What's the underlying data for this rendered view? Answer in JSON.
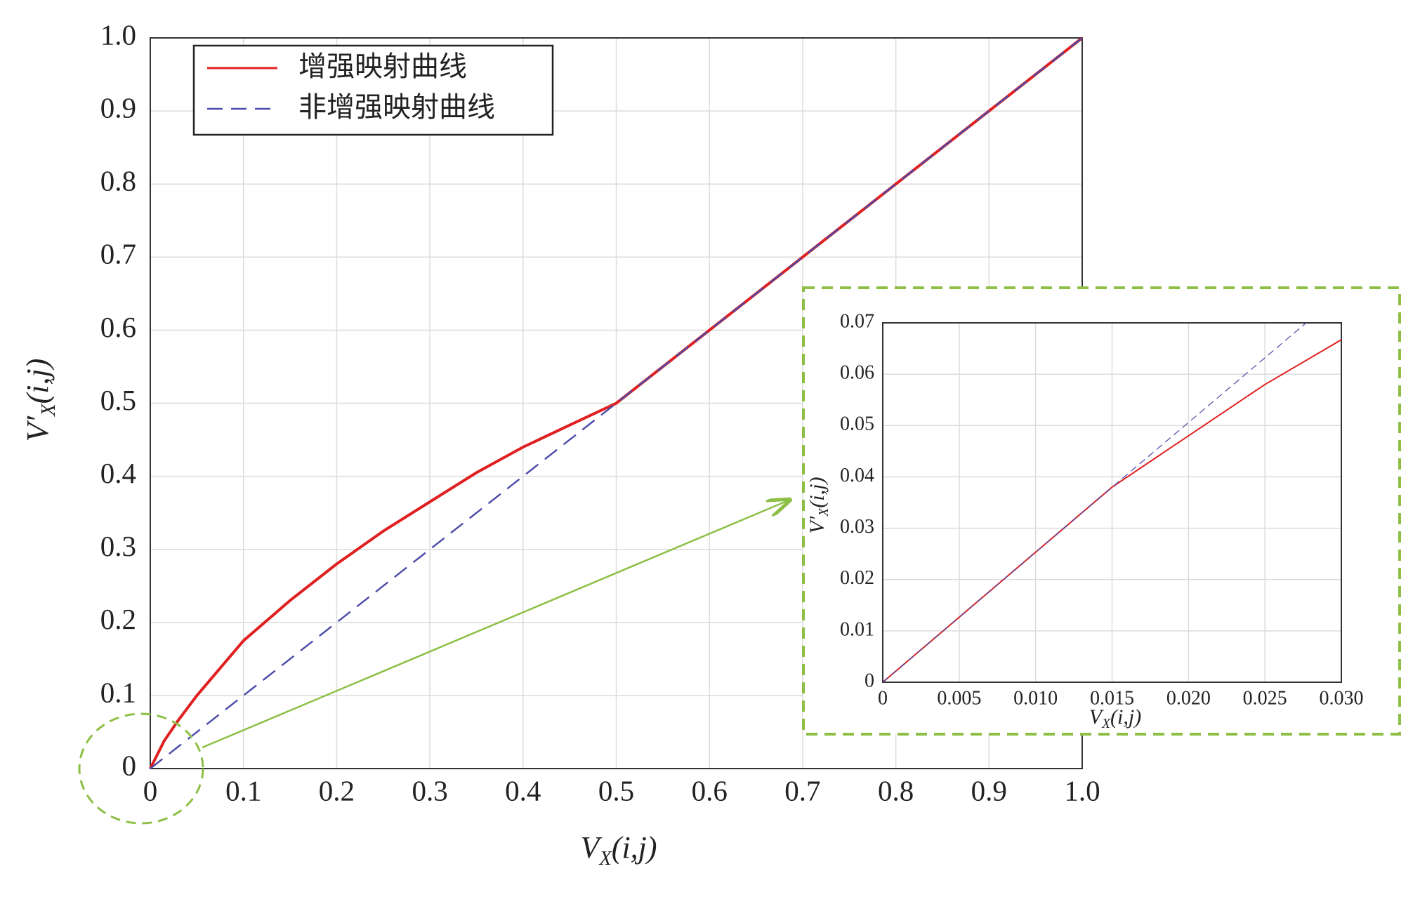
{
  "chart_data": [
    {
      "type": "line",
      "x_label": [
        "V",
        "X",
        "(i,j)"
      ],
      "y_label": [
        "V′",
        "X",
        "(i,j)"
      ],
      "xlim": [
        0,
        1
      ],
      "ylim": [
        0,
        1
      ],
      "xticks": [
        0,
        0.1,
        0.2,
        0.3,
        0.4,
        0.5,
        0.6,
        0.7,
        0.8,
        0.9,
        {
          "value": 1,
          "label": "1.0"
        }
      ],
      "yticks": [
        0,
        0.1,
        0.2,
        0.3,
        0.4,
        0.5,
        0.6,
        0.7,
        0.8,
        0.9,
        {
          "value": 1,
          "label": "1.0"
        }
      ],
      "grid": true,
      "legend": "upper left",
      "series": [
        {
          "name": "增强映射曲线",
          "color": "#e02020",
          "dashed": false,
          "x": [
            0,
            0.015,
            0.03,
            0.05,
            0.1,
            0.15,
            0.2,
            0.25,
            0.3,
            0.35,
            0.4,
            0.45,
            0.5,
            1
          ],
          "values": [
            0,
            0.038,
            0.066,
            0.1,
            0.175,
            0.23,
            0.28,
            0.325,
            0.365,
            0.405,
            0.44,
            0.47,
            0.5,
            1
          ]
        },
        {
          "name": "非增强映射曲线",
          "color": "#4a4aa8",
          "dashed": true,
          "x": [
            0,
            0.5,
            1
          ],
          "values": [
            0,
            0.5,
            1
          ]
        }
      ]
    },
    {
      "type": "line",
      "x_label": [
        "V",
        "X",
        "(i,j)"
      ],
      "y_label": [
        "V′",
        "X",
        "(i,j)"
      ],
      "xlim": [
        0,
        0.03
      ],
      "ylim": [
        0,
        0.07
      ],
      "xticks": [
        0,
        0.005,
        {
          "value": 0.01,
          "label": "0.010"
        },
        0.015,
        {
          "value": 0.02,
          "label": "0.020"
        },
        0.025,
        {
          "value": 0.03,
          "label": "0.030"
        }
      ],
      "yticks": [
        0,
        0.01,
        0.02,
        0.03,
        0.04,
        0.05,
        0.06,
        0.07
      ],
      "grid": true,
      "series": [
        {
          "color": "#e02020",
          "dashed": false,
          "x": [
            0,
            0.015,
            0.02,
            0.025,
            0.03
          ],
          "values": [
            0,
            0.038,
            0.048,
            0.058,
            0.0667
          ]
        },
        {
          "color": "#4a4aa8",
          "dashed": true,
          "x": [
            0,
            0.015,
            0.0277
          ],
          "values": [
            0,
            0.038,
            0.07
          ]
        }
      ]
    }
  ]
}
